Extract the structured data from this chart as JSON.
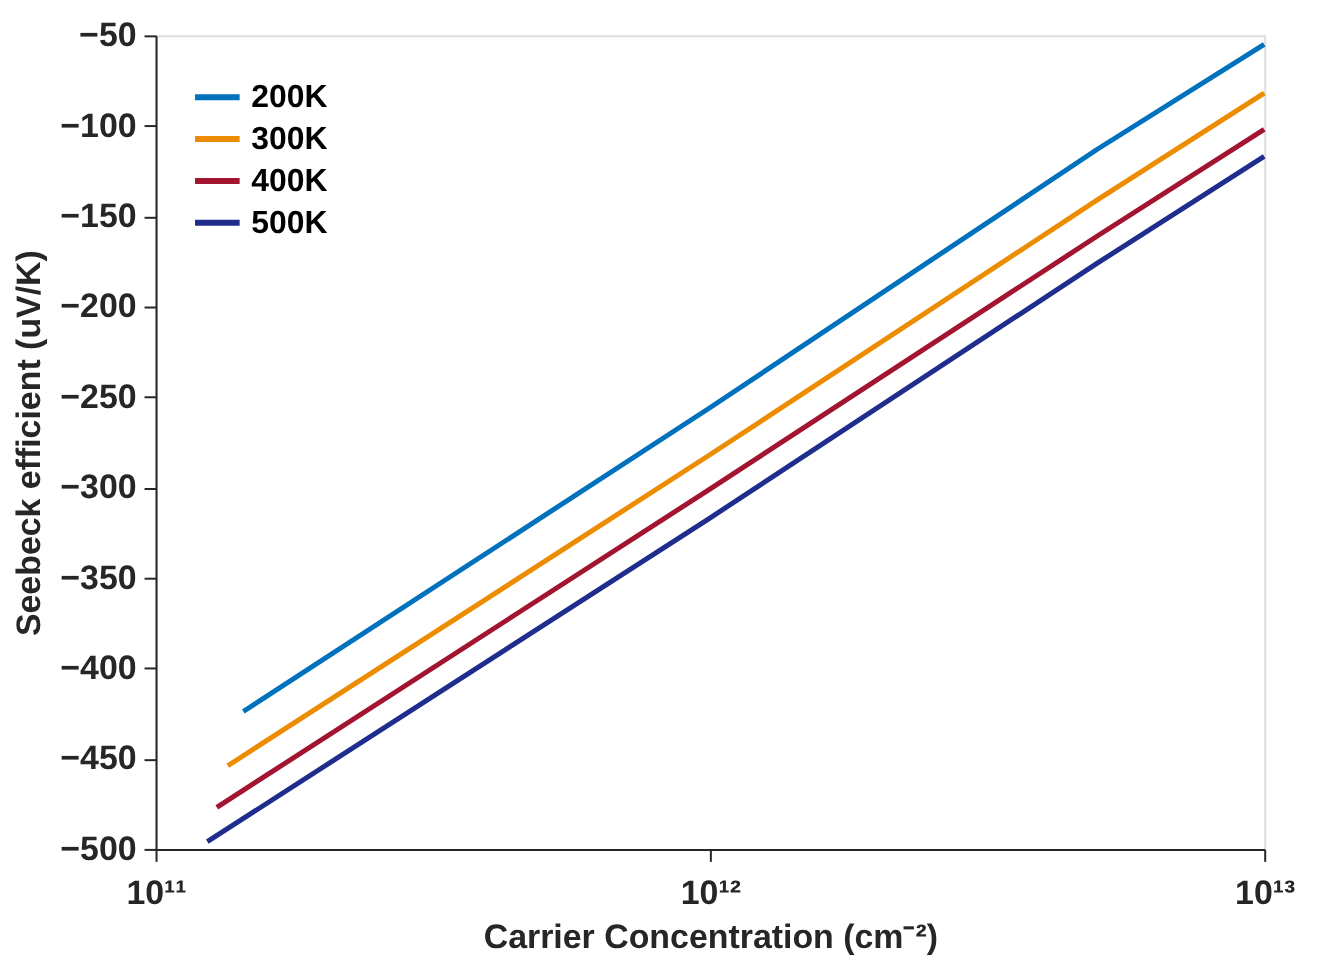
{
  "chart_data": {
    "type": "line",
    "xlabel": "Carrier Concentration (cm⁻²)",
    "ylabel": "Seebeck efficient (uV/K)",
    "log": "x",
    "xlim": [
      100000000000.0,
      10000000000000.0
    ],
    "xticks": [
      {
        "value": 100000000000.0,
        "label": "10¹¹"
      },
      {
        "value": 1000000000000.0,
        "label": "10¹²"
      },
      {
        "value": 10000000000000.0,
        "label": "10¹³"
      }
    ],
    "ylim": [
      -500,
      -50
    ],
    "yticks": [
      -500,
      -450,
      -400,
      -350,
      -300,
      -250,
      -200,
      -150,
      -100,
      -50
    ],
    "grid": false,
    "legend": "top left",
    "line_style": "solid",
    "marker": "none",
    "series": [
      {
        "name": "200K",
        "color": "#0072bd",
        "x": [
          144000000000.0,
          1000000000000.0,
          5000000000000.0,
          10000000000000.0
        ],
        "values": [
          -424,
          -256,
          -113,
          -55
        ]
      },
      {
        "name": "300K",
        "color": "#ec8c00",
        "x": [
          135000000000.0,
          1000000000000.0,
          5000000000000.0,
          10000000000000.0
        ],
        "values": [
          -454,
          -282,
          -141,
          -82
        ]
      },
      {
        "name": "400K",
        "color": "#a2142f",
        "x": [
          129000000000.0,
          1000000000000.0,
          5000000000000.0,
          10000000000000.0
        ],
        "values": [
          -477,
          -301,
          -161,
          -102
        ]
      },
      {
        "name": "500K",
        "color": "#1f2d8c",
        "x": [
          124000000000.0,
          1000000000000.0,
          5000000000000.0,
          10000000000000.0
        ],
        "values": [
          -496,
          -317,
          -176,
          -117
        ]
      }
    ]
  }
}
